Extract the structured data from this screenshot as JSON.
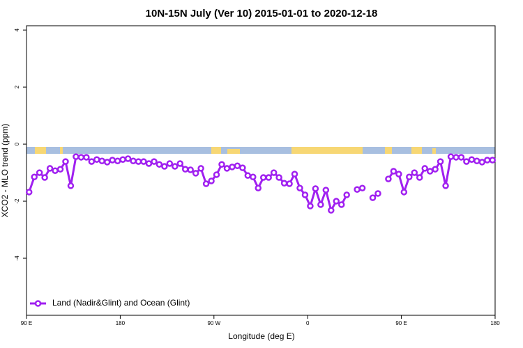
{
  "chart_data": {
    "type": "line",
    "title": "10N-15N July (Ver 10)   2015-01-01 to 2020-12-18",
    "xlabel": "Longitude (deg E)",
    "ylabel": "XCO2 - MLO trend (ppm)",
    "xlim": [
      90,
      540
    ],
    "ylim": [
      -6,
      4.15
    ],
    "xticks": [
      {
        "value": 90,
        "label": "90 E"
      },
      {
        "value": 180,
        "label": "180"
      },
      {
        "value": 270,
        "label": "90 W"
      },
      {
        "value": 360,
        "label": "0"
      },
      {
        "value": 450,
        "label": "90 E"
      },
      {
        "value": 540,
        "label": "180"
      }
    ],
    "yticks": [
      4,
      2,
      0,
      -2,
      -4
    ],
    "legend": "bottom-left",
    "x": [
      92.5,
      97.5,
      102.5,
      107.5,
      112.5,
      117.5,
      122.5,
      127.5,
      132.5,
      137.5,
      142.5,
      147.5,
      152.5,
      157.5,
      162.5,
      167.5,
      172.5,
      177.5,
      182.5,
      187.5,
      192.5,
      197.5,
      202.5,
      207.5,
      212.5,
      217.5,
      222.5,
      227.5,
      232.5,
      237.5,
      242.5,
      247.5,
      252.5,
      257.5,
      262.5,
      267.5,
      272.5,
      277.5,
      282.5,
      287.5,
      292.5,
      297.5,
      302.5,
      307.5,
      312.5,
      317.5,
      322.5,
      327.5,
      332.5,
      337.5,
      342.5,
      347.5,
      352.5,
      357.5,
      362.5,
      367.5,
      372.5,
      377.5,
      382.5,
      387.5,
      392.5,
      397.5,
      402.5,
      407.5,
      412.5,
      417.5,
      422.5,
      427.5,
      432.5,
      437.5,
      442.5,
      447.5,
      452.5,
      457.5,
      462.5,
      467.5,
      472.5,
      477.5,
      482.5,
      487.5,
      492.5,
      497.5,
      502.5,
      507.5,
      512.5,
      517.5,
      522.5,
      527.5,
      532.5,
      537.5
    ],
    "series": [
      {
        "name": "Land (Nadir&Glint) and Ocean (Glint)",
        "color": "#a020f0",
        "values": [
          -1.68,
          -1.15,
          -1.0,
          -1.17,
          -0.85,
          -0.93,
          -0.88,
          -0.61,
          -1.46,
          -0.44,
          -0.46,
          -0.46,
          -0.61,
          -0.54,
          -0.59,
          -0.63,
          -0.56,
          -0.59,
          -0.54,
          -0.51,
          -0.59,
          -0.61,
          -0.61,
          -0.68,
          -0.61,
          -0.71,
          -0.78,
          -0.68,
          -0.78,
          -0.68,
          -0.88,
          -0.9,
          -1.02,
          -0.85,
          -1.39,
          -1.29,
          -1.07,
          -0.71,
          -0.85,
          -0.8,
          -0.76,
          -0.83,
          -1.1,
          -1.15,
          -1.54,
          -1.17,
          -1.17,
          -1.0,
          -1.17,
          -1.37,
          -1.39,
          -1.05,
          -1.54,
          -1.78,
          -2.17,
          -1.56,
          -2.12,
          -1.61,
          -2.32,
          -2.0,
          -2.12,
          -1.78,
          null,
          -1.59,
          -1.54,
          null,
          -1.88,
          -1.73,
          null,
          -1.22,
          -0.95,
          -1.05,
          -1.68,
          -1.15,
          -1.0,
          -1.17,
          -0.85,
          -0.95,
          -0.88,
          -0.61,
          -1.46,
          -0.44,
          -0.46,
          -0.46,
          -0.61,
          -0.54,
          -0.59,
          -0.63,
          -0.56,
          -0.56
        ]
      }
    ]
  }
}
